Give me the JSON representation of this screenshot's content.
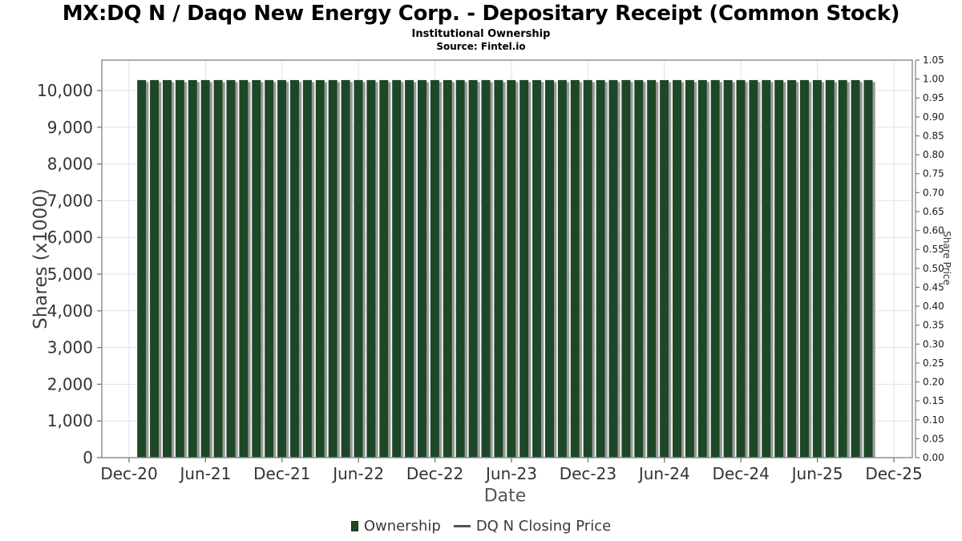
{
  "header": {
    "title": "MX:DQ N / Daqo New Energy Corp. - Depositary Receipt (Common Stock)",
    "subtitle": "Institutional Ownership",
    "source": "Source: Fintel.io"
  },
  "legend": {
    "items": [
      {
        "label": "Ownership",
        "swatch": "square",
        "color": "#1d4727"
      },
      {
        "label": "DQ N Closing Price",
        "swatch": "line",
        "color": "#555555"
      }
    ]
  },
  "colors": {
    "bar": "#1d4727",
    "bar_shadow": "#999999",
    "grid": "#e2e2e2",
    "axis": "#8a8a8a",
    "tick": "#777777"
  },
  "chart_data": {
    "type": "bar",
    "title": "MX:DQ N / Daqo New Energy Corp. - Depositary Receipt (Common Stock)",
    "subtitle": "Institutional Ownership",
    "source": "Source: Fintel.io",
    "xlabel": "Date",
    "ylabel_left": "Shares (x1000)",
    "ylabel_right": "Share Price",
    "grid": true,
    "legend_position": "bottom",
    "ylim_left": [
      0,
      10830
    ],
    "ylim_right": [
      0,
      1.05
    ],
    "x_tick_labels": [
      "Dec-20",
      "Jun-21",
      "Dec-21",
      "Jun-22",
      "Dec-22",
      "Jun-23",
      "Dec-23",
      "Jun-24",
      "Dec-24",
      "Jun-25",
      "Dec-25"
    ],
    "y_left_tick_values": [
      0,
      1000,
      2000,
      3000,
      4000,
      5000,
      6000,
      7000,
      8000,
      9000,
      10000
    ],
    "y_left_tick_labels": [
      "0",
      "1,000",
      "2,000",
      "3,000",
      "4,000",
      "5,000",
      "6,000",
      "7,000",
      "8,000",
      "9,000",
      "10,000"
    ],
    "y_right_tick_values": [
      0,
      0.05,
      0.1,
      0.15,
      0.2,
      0.25,
      0.3,
      0.35,
      0.4,
      0.45,
      0.5,
      0.55,
      0.6,
      0.65,
      0.7,
      0.75,
      0.8,
      0.85,
      0.9,
      0.95,
      1.0,
      1.05
    ],
    "y_right_tick_labels": [
      "0.00",
      "0.05",
      "0.10",
      "0.15",
      "0.20",
      "0.25",
      "0.30",
      "0.35",
      "0.40",
      "0.45",
      "0.50",
      "0.55",
      "0.60",
      "0.65",
      "0.70",
      "0.75",
      "0.80",
      "0.85",
      "0.90",
      "0.95",
      "1.00",
      "1.05"
    ],
    "categories": [
      "Jan-21",
      "Feb-21",
      "Mar-21",
      "Apr-21",
      "May-21",
      "Jun-21",
      "Jul-21",
      "Aug-21",
      "Sep-21",
      "Oct-21",
      "Nov-21",
      "Dec-21",
      "Jan-22",
      "Feb-22",
      "Mar-22",
      "Apr-22",
      "May-22",
      "Jun-22",
      "Jul-22",
      "Aug-22",
      "Sep-22",
      "Oct-22",
      "Nov-22",
      "Dec-22",
      "Jan-23",
      "Feb-23",
      "Mar-23",
      "Apr-23",
      "May-23",
      "Jun-23",
      "Jul-23",
      "Aug-23",
      "Sep-23",
      "Oct-23",
      "Nov-23",
      "Dec-23",
      "Jan-24",
      "Feb-24",
      "Mar-24",
      "Apr-24",
      "May-24",
      "Jun-24",
      "Jul-24",
      "Aug-24",
      "Sep-24",
      "Oct-24",
      "Nov-24",
      "Dec-24",
      "Jan-25",
      "Feb-25",
      "Mar-25",
      "Apr-25",
      "May-25",
      "Jun-25",
      "Jul-25",
      "Aug-25",
      "Sep-25",
      "Oct-25"
    ],
    "series": [
      {
        "name": "Ownership",
        "type": "bar",
        "color": "#1d4727",
        "axis": "left",
        "values": [
          10285,
          10285,
          10285,
          10285,
          10285,
          10285,
          10285,
          10285,
          10285,
          10285,
          10285,
          10285,
          10285,
          10285,
          10285,
          10285,
          10285,
          10285,
          10285,
          10285,
          10285,
          10285,
          10285,
          10285,
          10285,
          10285,
          10285,
          10285,
          10285,
          10285,
          10285,
          10285,
          10285,
          10285,
          10285,
          10285,
          10285,
          10285,
          10285,
          10285,
          10285,
          10285,
          10285,
          10285,
          10285,
          10285,
          10285,
          10285,
          10285,
          10285,
          10285,
          10285,
          10285,
          10285,
          10285,
          10285,
          10285,
          10285
        ]
      },
      {
        "name": "DQ N Closing Price",
        "type": "line",
        "color": "#555555",
        "axis": "right",
        "values": []
      }
    ]
  }
}
